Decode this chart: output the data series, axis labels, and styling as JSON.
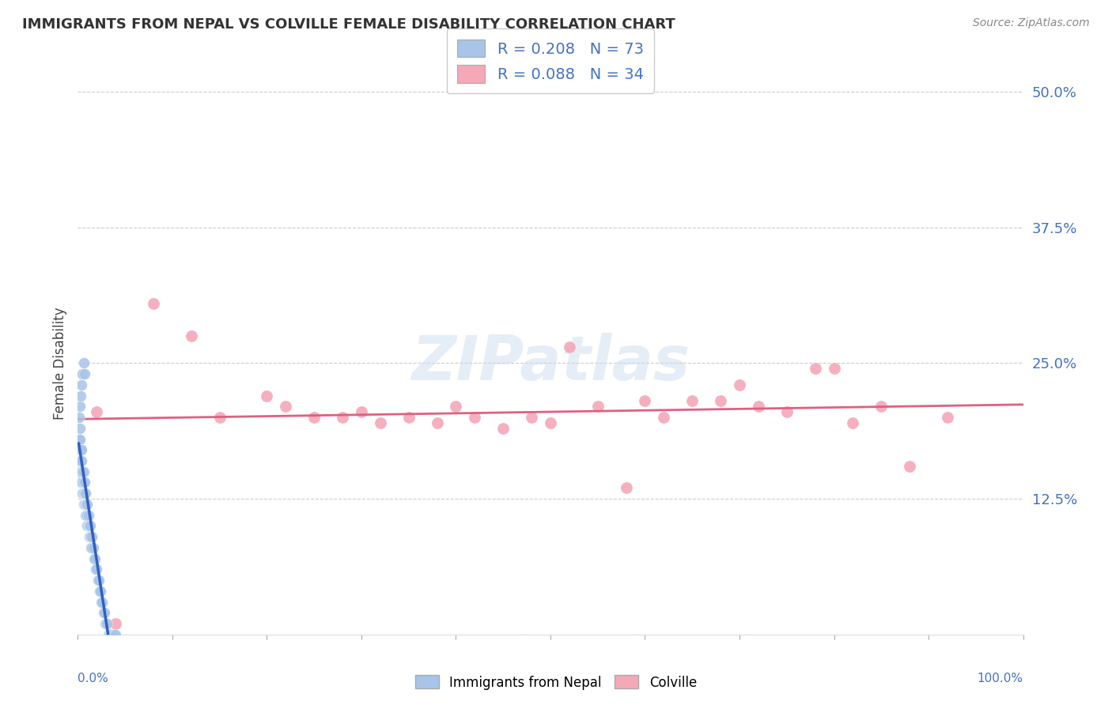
{
  "title": "IMMIGRANTS FROM NEPAL VS COLVILLE FEMALE DISABILITY CORRELATION CHART",
  "source": "Source: ZipAtlas.com",
  "ylabel": "Female Disability",
  "legend_label1": "Immigrants from Nepal",
  "legend_label2": "Colville",
  "watermark": "ZIPatlas",
  "nepal_color": "#a8c4e8",
  "colville_color": "#f4a8b8",
  "nepal_line_color": "#3060c0",
  "colville_line_color": "#e06080",
  "dashed_line_color": "#90b8e8",
  "nepal_R": 0.208,
  "nepal_N": 73,
  "colville_R": 0.088,
  "colville_N": 34,
  "nepal_x": [
    0.001,
    0.001,
    0.001,
    0.002,
    0.002,
    0.002,
    0.002,
    0.002,
    0.003,
    0.003,
    0.003,
    0.003,
    0.004,
    0.004,
    0.004,
    0.004,
    0.005,
    0.005,
    0.005,
    0.006,
    0.006,
    0.006,
    0.006,
    0.007,
    0.007,
    0.007,
    0.008,
    0.008,
    0.008,
    0.009,
    0.009,
    0.01,
    0.01,
    0.01,
    0.011,
    0.011,
    0.012,
    0.012,
    0.013,
    0.013,
    0.014,
    0.014,
    0.015,
    0.015,
    0.016,
    0.017,
    0.018,
    0.019,
    0.02,
    0.021,
    0.022,
    0.023,
    0.024,
    0.025,
    0.026,
    0.027,
    0.028,
    0.029,
    0.03,
    0.031,
    0.032,
    0.033,
    0.034,
    0.035,
    0.038,
    0.04,
    0.001,
    0.002,
    0.003,
    0.004,
    0.005,
    0.006,
    0.007
  ],
  "nepal_y": [
    0.16,
    0.17,
    0.18,
    0.15,
    0.16,
    0.17,
    0.18,
    0.19,
    0.14,
    0.15,
    0.16,
    0.17,
    0.14,
    0.15,
    0.16,
    0.17,
    0.13,
    0.14,
    0.15,
    0.12,
    0.13,
    0.14,
    0.15,
    0.12,
    0.13,
    0.14,
    0.11,
    0.12,
    0.13,
    0.11,
    0.12,
    0.1,
    0.11,
    0.12,
    0.1,
    0.11,
    0.09,
    0.1,
    0.09,
    0.1,
    0.08,
    0.09,
    0.08,
    0.09,
    0.08,
    0.07,
    0.07,
    0.06,
    0.06,
    0.05,
    0.05,
    0.04,
    0.04,
    0.03,
    0.03,
    0.02,
    0.02,
    0.01,
    0.01,
    0.01,
    0.0,
    0.0,
    0.0,
    0.0,
    0.0,
    0.0,
    0.2,
    0.21,
    0.22,
    0.23,
    0.24,
    0.25,
    0.24
  ],
  "colville_x": [
    0.02,
    0.04,
    0.08,
    0.12,
    0.15,
    0.2,
    0.22,
    0.25,
    0.28,
    0.3,
    0.32,
    0.35,
    0.38,
    0.4,
    0.42,
    0.45,
    0.48,
    0.5,
    0.52,
    0.55,
    0.58,
    0.6,
    0.62,
    0.65,
    0.68,
    0.7,
    0.72,
    0.75,
    0.78,
    0.8,
    0.82,
    0.85,
    0.88,
    0.92
  ],
  "colville_y": [
    0.205,
    0.01,
    0.305,
    0.275,
    0.2,
    0.22,
    0.21,
    0.2,
    0.2,
    0.205,
    0.195,
    0.2,
    0.195,
    0.21,
    0.2,
    0.19,
    0.2,
    0.195,
    0.265,
    0.21,
    0.135,
    0.215,
    0.2,
    0.215,
    0.215,
    0.23,
    0.21,
    0.205,
    0.245,
    0.245,
    0.195,
    0.21,
    0.155,
    0.2
  ],
  "ytick_positions": [
    0.0,
    0.125,
    0.25,
    0.375,
    0.5
  ],
  "ytick_labels": [
    "",
    "12.5%",
    "25.0%",
    "37.5%",
    "50.0%"
  ]
}
